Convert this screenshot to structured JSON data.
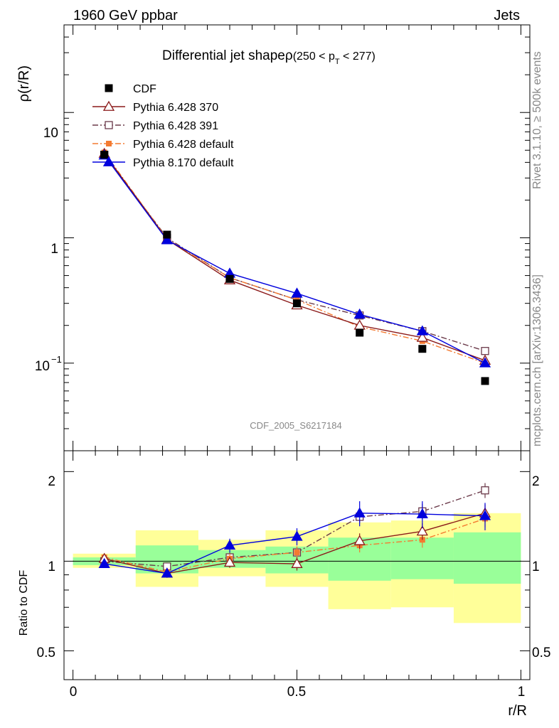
{
  "header": {
    "energy_label": "1960 GeV ppbar",
    "process_label": "Jets",
    "rivet_label": "Rivet 3.1.10, ≥ 500k events",
    "mcplots_label": "mcplots.cern.ch [arXiv:1306.3436]",
    "analysis_id": "CDF_2005_S6217184"
  },
  "main_plot": {
    "title_main": "Differential jet shapeρ",
    "title_range": "(250 < p",
    "title_sub": "T",
    "title_end": " < 277)",
    "ylabel": "ρ(r/R)",
    "y_ticks": [
      {
        "label": "10",
        "value": 10
      },
      {
        "label": "1",
        "value": 1
      },
      {
        "label": "10",
        "sup": "−1",
        "value": 0.1
      }
    ]
  },
  "ratio_plot": {
    "ylabel": "Ratio to CDF",
    "y_ticks": [
      "2",
      "1",
      "0.5"
    ],
    "xlabel": "r/R",
    "x_ticks": [
      "0",
      "0.5",
      "1"
    ]
  },
  "legend": [
    {
      "name": "CDF"
    },
    {
      "name": "Pythia 6.428 370"
    },
    {
      "name": "Pythia 6.428 391"
    },
    {
      "name": "Pythia 6.428 default"
    },
    {
      "name": "Pythia 8.170 default"
    }
  ],
  "colors": {
    "cdf": "#000000",
    "p370": "#8b1a1a",
    "p391": "#6b3a4a",
    "pdef": "#f47a30",
    "p8": "#0000dd",
    "band_inner": "#99ff99",
    "band_outer": "#ffff99",
    "label_gray": "#888888"
  },
  "chart_data": {
    "type": "line",
    "x": [
      0.07,
      0.21,
      0.35,
      0.5,
      0.64,
      0.78,
      0.92
    ],
    "x_edges": [
      0.0,
      0.14,
      0.28,
      0.43,
      0.57,
      0.71,
      0.85,
      1.0
    ],
    "xlim": [
      -0.02,
      1.02
    ],
    "ylim_main": [
      0.02,
      50
    ],
    "yscale_main": "log",
    "ylim_ratio": [
      0.4,
      2.35
    ],
    "yscale_ratio": "log",
    "series": [
      {
        "name": "CDF",
        "key": "cdf",
        "values": [
          4.6,
          1.06,
          0.47,
          0.3,
          0.175,
          0.13,
          0.072
        ]
      },
      {
        "name": "Pythia 6.428 370",
        "key": "p370",
        "values": [
          4.7,
          0.97,
          0.46,
          0.29,
          0.2,
          0.16,
          0.105
        ],
        "ratio": [
          1.02,
          0.91,
          0.99,
          0.98,
          1.17,
          1.26,
          1.45
        ],
        "ratio_err": [
          0.0,
          0.03,
          0.04,
          0.05,
          0.07,
          0.08,
          0.1
        ]
      },
      {
        "name": "Pythia 6.428 391",
        "key": "p391",
        "values": [
          4.6,
          1.0,
          0.48,
          0.32,
          0.24,
          0.18,
          0.125
        ],
        "ratio": [
          1.0,
          0.96,
          1.03,
          1.07,
          1.41,
          1.47,
          1.73
        ],
        "ratio_err": [
          0.0,
          0.03,
          0.04,
          0.05,
          0.07,
          0.09,
          0.1
        ]
      },
      {
        "name": "Pythia 6.428 default",
        "key": "pdef",
        "values": [
          4.8,
          0.98,
          0.48,
          0.32,
          0.195,
          0.15,
          0.1
        ],
        "ratio": [
          1.03,
          0.92,
          1.02,
          1.07,
          1.13,
          1.18,
          1.39
        ],
        "ratio_err": [
          0.0,
          0.03,
          0.04,
          0.05,
          0.06,
          0.07,
          0.09
        ]
      },
      {
        "name": "Pythia 8.170 default",
        "key": "p8",
        "values": [
          4.55,
          0.96,
          0.52,
          0.36,
          0.245,
          0.18,
          0.1
        ],
        "ratio": [
          0.98,
          0.91,
          1.13,
          1.21,
          1.45,
          1.44,
          1.42
        ],
        "ratio_err": [
          0.0,
          0.03,
          0.06,
          0.08,
          0.14,
          0.15,
          0.15
        ]
      }
    ],
    "ratio_band_inner": [
      [
        0.97,
        1.03
      ],
      [
        0.91,
        1.13
      ],
      [
        0.95,
        1.09
      ],
      [
        0.91,
        1.12
      ],
      [
        0.86,
        1.2
      ],
      [
        0.87,
        1.2
      ],
      [
        0.84,
        1.25
      ]
    ],
    "ratio_band_outer": [
      [
        0.95,
        1.06
      ],
      [
        0.82,
        1.27
      ],
      [
        0.89,
        1.18
      ],
      [
        0.82,
        1.27
      ],
      [
        0.69,
        1.35
      ],
      [
        0.7,
        1.37
      ],
      [
        0.62,
        1.45
      ]
    ]
  }
}
